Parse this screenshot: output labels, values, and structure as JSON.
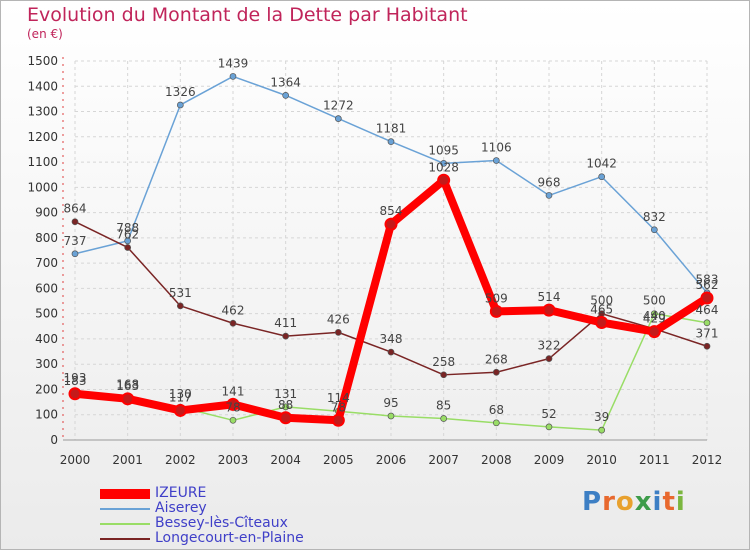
{
  "title": "Evolution du Montant de la Dette par Habitant",
  "unit": "(en €)",
  "logo": "Proxiti",
  "chart_data": {
    "type": "line",
    "title": "Evolution du Montant de la Dette par Habitant",
    "ylabel": "(en €)",
    "ylim": [
      0,
      1500
    ],
    "yticks": [
      0,
      100,
      200,
      300,
      400,
      500,
      600,
      700,
      800,
      900,
      1000,
      1100,
      1200,
      1300,
      1400,
      1500
    ],
    "categories": [
      "2000",
      "2001",
      "2002",
      "2003",
      "2004",
      "2005",
      "2006",
      "2007",
      "2008",
      "2009",
      "2010",
      "2011",
      "2012"
    ],
    "grid": true,
    "legend": "bottom-left",
    "series": [
      {
        "name": "IZEURE",
        "color": "#ff0000",
        "values": [
          183,
          163,
          117,
          141,
          88,
          78,
          854,
          1028,
          509,
          514,
          465,
          429,
          562
        ]
      },
      {
        "name": "Aiserey",
        "color": "#6aa2d6",
        "values": [
          737,
          788,
          1326,
          1439,
          1364,
          1272,
          1181,
          1095,
          1106,
          968,
          1042,
          832,
          583
        ]
      },
      {
        "name": "Bessey-lès-Cîteaux",
        "color": "#99dd66",
        "values": [
          193,
          168,
          130,
          78,
          131,
          114,
          95,
          85,
          68,
          52,
          39,
          500,
          464
        ]
      },
      {
        "name": "Longecourt-en-Plaine",
        "color": "#7a2525",
        "values": [
          864,
          762,
          531,
          462,
          411,
          426,
          348,
          258,
          268,
          322,
          500,
          440,
          371
        ]
      }
    ]
  }
}
